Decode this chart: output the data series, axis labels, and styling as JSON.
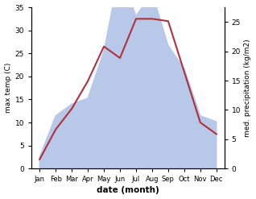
{
  "months": [
    "Jan",
    "Feb",
    "Mar",
    "Apr",
    "May",
    "Jun",
    "Jul",
    "Aug",
    "Sep",
    "Oct",
    "Nov",
    "Dec"
  ],
  "month_indices": [
    1,
    2,
    3,
    4,
    5,
    6,
    7,
    8,
    9,
    10,
    11,
    12
  ],
  "temp": [
    2.0,
    8.5,
    13.0,
    19.0,
    26.5,
    24.0,
    32.5,
    32.5,
    32.0,
    21.0,
    10.0,
    7.5
  ],
  "precip": [
    2.0,
    9.0,
    11.0,
    12.0,
    20.0,
    34.0,
    26.0,
    30.0,
    21.0,
    17.0,
    9.0,
    8.0
  ],
  "temp_color": "#b03040",
  "precip_color": "#b8c8e8",
  "xlabel": "date (month)",
  "ylabel_left": "max temp (C)",
  "ylabel_right": "med. precipitation (kg/m2)",
  "ylim_left": [
    0,
    35
  ],
  "ylim_right": [
    0,
    27.5
  ],
  "yticks_left": [
    0,
    5,
    10,
    15,
    20,
    25,
    30,
    35
  ],
  "yticks_right": [
    0,
    5,
    10,
    15,
    20,
    25
  ],
  "bg_color": "#ffffff"
}
